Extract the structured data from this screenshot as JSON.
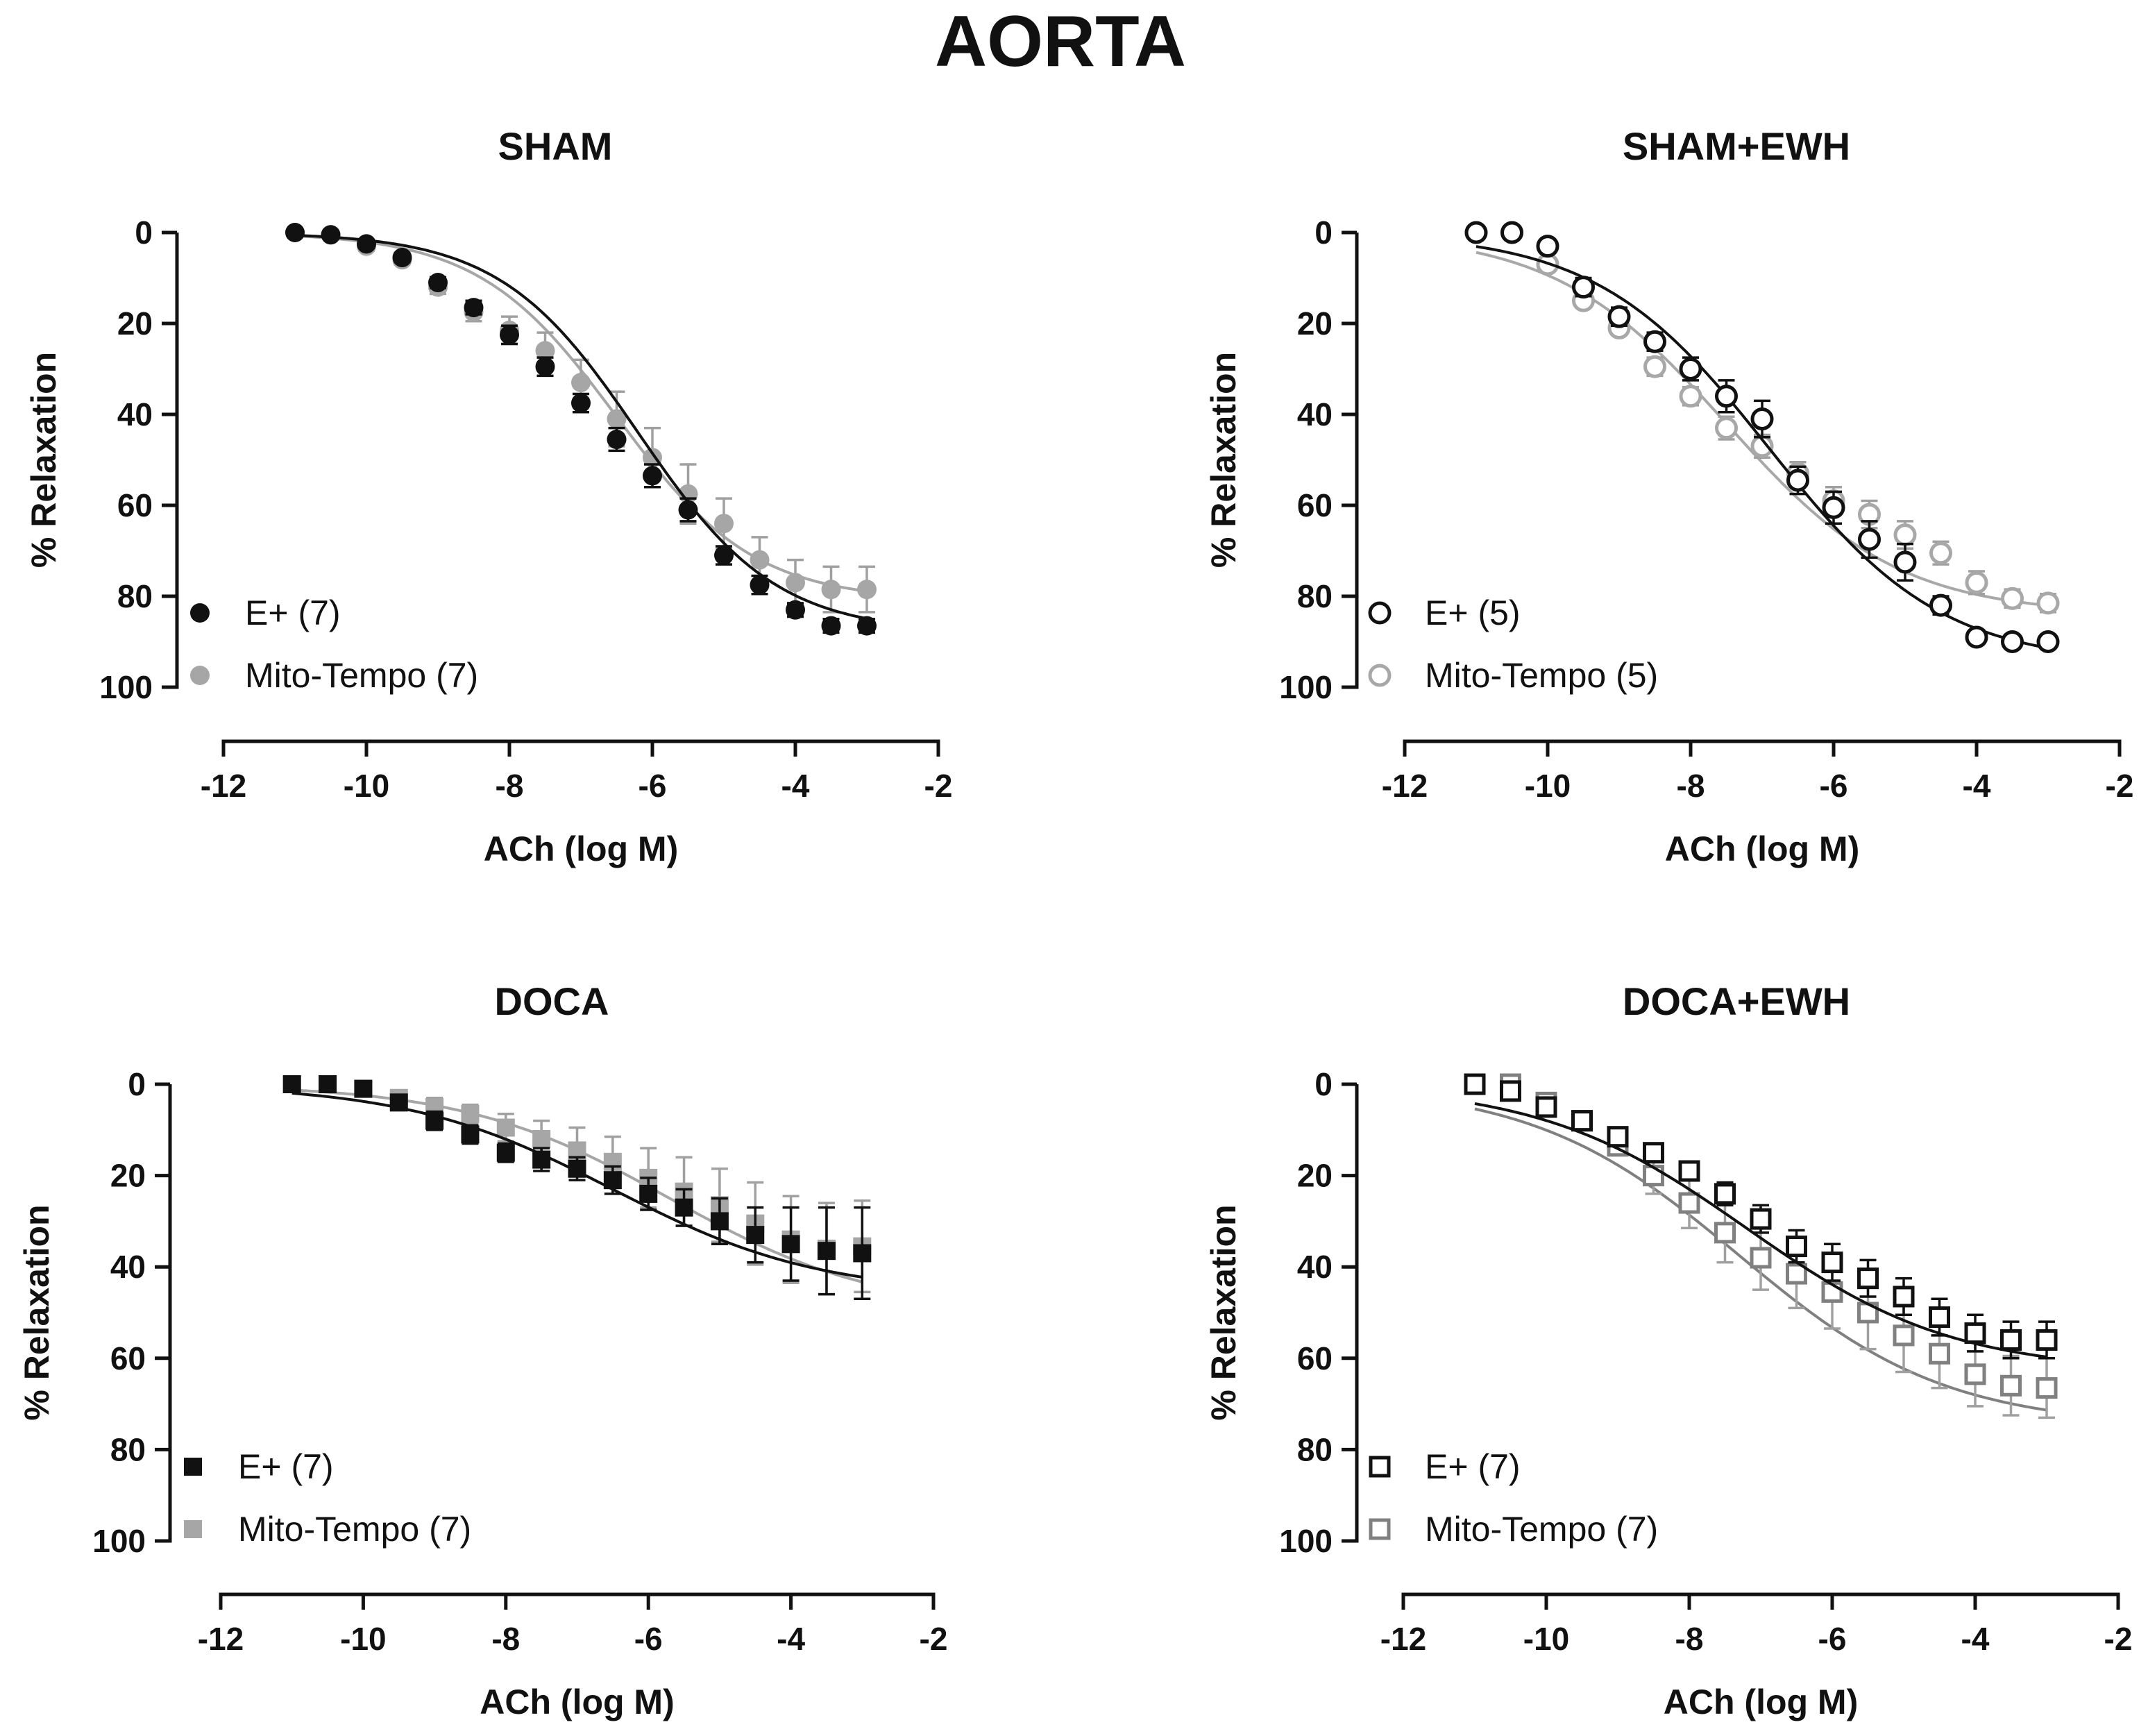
{
  "figure": {
    "title": "AORTA"
  },
  "colors": {
    "black": "#111111",
    "gray_filled": "#a6a6a6",
    "gray_open": "#a8a8a8",
    "gray_square_open": "#808080",
    "error_gray": "#a0a0a0"
  },
  "chart_data": [
    {
      "id": "sham",
      "type": "line",
      "title": "SHAM",
      "xlabel": "ACh (log M)",
      "ylabel": "% Relaxation",
      "xlim": [
        -12,
        -2
      ],
      "ylim": [
        0,
        100
      ],
      "y_inverted": true,
      "xticks": [
        -12,
        -10,
        -8,
        -6,
        -4,
        -2
      ],
      "xtick_labels": [
        "-12",
        "-10",
        "-8",
        "-6",
        "-4",
        "-2"
      ],
      "yticks": [
        0,
        20,
        40,
        60,
        80,
        100
      ],
      "ytick_labels": [
        "0",
        "20",
        "40",
        "60",
        "80",
        "100"
      ],
      "legend_position": "bottom-left",
      "x": [
        -11,
        -10.5,
        -10,
        -9.5,
        -9,
        -8.5,
        -8,
        -7.5,
        -7,
        -6.5,
        -6,
        -5.5,
        -5,
        -4.5,
        -4,
        -3.5,
        -3
      ],
      "series": [
        {
          "name": "E+ (7)",
          "marker": "circle",
          "filled": true,
          "color": "#111111",
          "values": [
            0,
            0.5,
            2.5,
            5.5,
            11,
            16.5,
            22.5,
            29.5,
            37.5,
            45.5,
            53.5,
            61,
            71,
            77.5,
            83,
            86.5,
            86.5
          ],
          "errors": [
            0.5,
            0.5,
            0.8,
            1,
            1.2,
            1.5,
            2,
            2,
            2,
            2.5,
            2.5,
            2.5,
            2,
            2,
            1.5,
            1.5,
            1.5
          ],
          "curve": {
            "bottom": 0,
            "top": 88,
            "logEC50": -6.2,
            "hill": 0.45
          }
        },
        {
          "name": "Mito-Tempo (7)",
          "marker": "circle",
          "filled": true,
          "color": "#a6a6a6",
          "values": [
            0,
            0.5,
            3,
            6,
            12,
            17.5,
            21.5,
            26,
            33,
            41,
            49.5,
            57.5,
            64,
            72,
            77,
            78.5,
            78.5
          ],
          "errors": [
            0.5,
            0.5,
            1,
            1,
            1.5,
            2,
            3,
            4,
            5,
            6,
            6.5,
            6.5,
            5.5,
            5,
            5,
            5,
            5
          ],
          "curve": {
            "bottom": 0,
            "top": 81,
            "logEC50": -6.5,
            "hill": 0.45
          }
        }
      ]
    },
    {
      "id": "sham-ewh",
      "type": "line",
      "title": "SHAM+EWH",
      "xlabel": "ACh (log M)",
      "ylabel": "% Relaxation",
      "xlim": [
        -12,
        -2
      ],
      "ylim": [
        0,
        100
      ],
      "y_inverted": true,
      "xticks": [
        -12,
        -10,
        -8,
        -6,
        -4,
        -2
      ],
      "xtick_labels": [
        "-12",
        "-10",
        "-8",
        "-6",
        "-4",
        "-2"
      ],
      "yticks": [
        0,
        20,
        40,
        60,
        80,
        100
      ],
      "ytick_labels": [
        "0",
        "20",
        "40",
        "60",
        "80",
        "100"
      ],
      "legend_position": "bottom-left",
      "x": [
        -11,
        -10.5,
        -10,
        -9.5,
        -9,
        -8.5,
        -8,
        -7.5,
        -7,
        -6.5,
        -6,
        -5.5,
        -5,
        -4.5,
        -4,
        -3.5,
        -3
      ],
      "series": [
        {
          "name": "E+ (5)",
          "marker": "circle",
          "filled": false,
          "color": "#111111",
          "values": [
            0,
            0,
            3,
            12,
            18.5,
            24,
            30,
            36,
            41,
            54.5,
            60.5,
            67.5,
            72.5,
            82,
            89,
            90,
            90
          ],
          "errors": [
            0.5,
            0.5,
            1,
            2,
            2,
            2,
            2.5,
            3.5,
            4,
            3,
            3.5,
            4,
            4,
            2,
            1.5,
            1.5,
            1.5
          ],
          "curve": {
            "bottom": 0,
            "top": 95,
            "logEC50": -6.9,
            "hill": 0.36
          }
        },
        {
          "name": "Mito-Tempo (5)",
          "marker": "circle",
          "filled": false,
          "color": "#a8a8a8",
          "values": [
            0,
            0,
            7,
            15,
            21,
            29.5,
            36,
            43,
            47,
            53,
            59,
            62,
            66.5,
            70.5,
            77,
            80.5,
            81.5
          ],
          "errors": [
            0.5,
            0.5,
            1,
            1.5,
            1.5,
            2,
            2,
            2.5,
            2.5,
            2.5,
            3,
            3,
            3,
            2.5,
            2.5,
            2,
            2
          ],
          "curve": {
            "bottom": 0,
            "top": 84,
            "logEC50": -7.5,
            "hill": 0.36
          }
        }
      ]
    },
    {
      "id": "doca",
      "type": "line",
      "title": "DOCA",
      "xlabel": "ACh (log M)",
      "ylabel": "% Relaxation",
      "xlim": [
        -12,
        -2
      ],
      "ylim": [
        0,
        100
      ],
      "y_inverted": true,
      "xticks": [
        -12,
        -10,
        -8,
        -6,
        -4,
        -2
      ],
      "xtick_labels": [
        "-12",
        "-10",
        "-8",
        "-6",
        "-4",
        "-2"
      ],
      "yticks": [
        0,
        20,
        40,
        60,
        80,
        100
      ],
      "ytick_labels": [
        "0",
        "20",
        "40",
        "60",
        "80",
        "100"
      ],
      "legend_position": "bottom-left",
      "x": [
        -11,
        -10.5,
        -10,
        -9.5,
        -9,
        -8.5,
        -8,
        -7.5,
        -7,
        -6.5,
        -6,
        -5.5,
        -5,
        -4.5,
        -4,
        -3.5,
        -3
      ],
      "series": [
        {
          "name": "E+ (7)",
          "marker": "square",
          "filled": true,
          "color": "#111111",
          "values": [
            0,
            0,
            1,
            4,
            8,
            11,
            15,
            16.5,
            18.5,
            21,
            24,
            27,
            30,
            33,
            35,
            36.5,
            37
          ],
          "errors": [
            0.5,
            0.5,
            1,
            1.5,
            2,
            2,
            2,
            2.5,
            2.5,
            3,
            3.5,
            4,
            5,
            6,
            8,
            9.5,
            10
          ],
          "curve": {
            "bottom": 0,
            "top": 46,
            "logEC50": -6.5,
            "hill": 0.3
          }
        },
        {
          "name": "Mito-Tempo (7)",
          "marker": "square",
          "filled": true,
          "color": "#a6a6a6",
          "values": [
            0,
            0,
            1,
            3,
            5,
            6.5,
            9.5,
            12,
            14.5,
            17,
            20.5,
            23.5,
            26.5,
            30.5,
            34,
            36,
            35.5
          ],
          "errors": [
            0.5,
            0.5,
            1,
            1.5,
            2,
            2,
            3,
            4,
            5,
            5.5,
            6.5,
            7.5,
            8,
            9,
            9.5,
            10,
            10
          ],
          "curve": {
            "bottom": 0,
            "top": 50,
            "logEC50": -5.7,
            "hill": 0.3
          }
        }
      ]
    },
    {
      "id": "doca-ewh",
      "type": "line",
      "title": "DOCA+EWH",
      "xlabel": "ACh (log M)",
      "ylabel": "% Relaxation",
      "xlim": [
        -12,
        -2
      ],
      "ylim": [
        0,
        100
      ],
      "y_inverted": true,
      "xticks": [
        -12,
        -10,
        -8,
        -6,
        -4,
        -2
      ],
      "xtick_labels": [
        "-12",
        "-10",
        "-8",
        "-6",
        "-4",
        "-2"
      ],
      "yticks": [
        0,
        20,
        40,
        60,
        80,
        100
      ],
      "ytick_labels": [
        "0",
        "20",
        "40",
        "60",
        "80",
        "100"
      ],
      "legend_position": "bottom-left",
      "x": [
        -11,
        -10.5,
        -10,
        -9.5,
        -9,
        -8.5,
        -8,
        -7.5,
        -7,
        -6.5,
        -6,
        -5.5,
        -5,
        -4.5,
        -4,
        -3.5,
        -3
      ],
      "series": [
        {
          "name": "E+ (7)",
          "marker": "square",
          "filled": false,
          "color": "#111111",
          "values": [
            0,
            1.5,
            5,
            8,
            11.5,
            15,
            19,
            24,
            29.5,
            35.5,
            39,
            42.5,
            46.5,
            51,
            54.5,
            56,
            56
          ],
          "errors": [
            0.5,
            0.5,
            1,
            1.5,
            1.5,
            2,
            2,
            2.5,
            3,
            3.5,
            4,
            4,
            4,
            4,
            4,
            4,
            4
          ],
          "curve": {
            "bottom": 0,
            "top": 63,
            "logEC50": -7.2,
            "hill": 0.3
          }
        },
        {
          "name": "Mito-Tempo (7)",
          "marker": "square",
          "filled": false,
          "color": "#808080",
          "values": [
            0,
            0,
            4,
            8,
            13.5,
            20,
            26,
            32.5,
            38,
            41.5,
            45.5,
            50,
            55,
            59,
            63.5,
            66,
            66.5
          ],
          "errors": [
            0.5,
            0.5,
            1,
            1.5,
            2,
            4,
            5.5,
            6.5,
            7,
            7.5,
            8,
            8,
            8,
            7.5,
            7,
            6.5,
            6.5
          ],
          "curve": {
            "bottom": 0,
            "top": 75,
            "logEC50": -7.3,
            "hill": 0.3
          }
        }
      ]
    }
  ]
}
